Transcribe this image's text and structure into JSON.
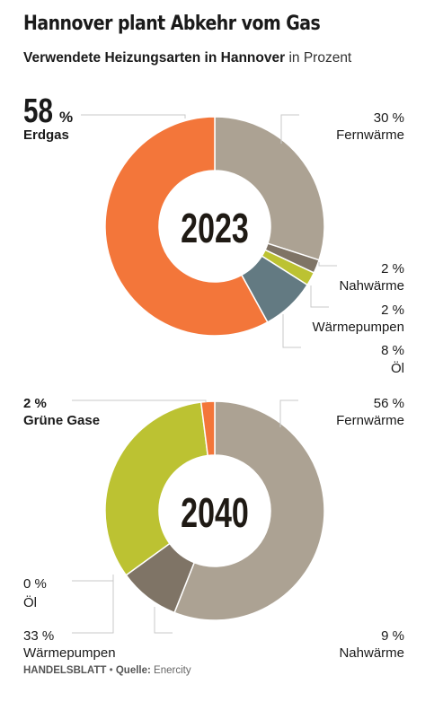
{
  "header": {
    "title": "Hannover plant Abkehr vom Gas",
    "subtitle": "Verwendete Heizungsarten in Hannover",
    "unit": "in Prozent"
  },
  "footer": {
    "publisher": "HANDELSBLATT",
    "source_label": "Quelle:",
    "source": "Enercity"
  },
  "colors": {
    "fernwaerme": "#aca293",
    "nahwaerme": "#7f7466",
    "waermepumpen_2023": "#bcc232",
    "waermepumpen_2040": "#bcc232",
    "oel": "#637a82",
    "erdgas": "#f3763a",
    "gruene_gase": "#f3763a"
  },
  "chart_data": [
    {
      "type": "pie",
      "center_label": "2023",
      "slices": [
        {
          "label": "Fernwärme",
          "value": 30,
          "display": "30 %",
          "color": "#aca293"
        },
        {
          "label": "Nahwärme",
          "value": 2,
          "display": "2 %",
          "color": "#7f7466"
        },
        {
          "label": "Wärmepumpen",
          "value": 2,
          "display": "2 %",
          "color": "#bcc232"
        },
        {
          "label": "Öl",
          "value": 8,
          "display": "8 %",
          "color": "#637a82"
        },
        {
          "label": "Erdgas",
          "value": 58,
          "display": "58",
          "unit": "%",
          "color": "#f3763a"
        }
      ]
    },
    {
      "type": "pie",
      "center_label": "2040",
      "slices": [
        {
          "label": "Fernwärme",
          "value": 56,
          "display": "56 %",
          "color": "#aca293"
        },
        {
          "label": "Nahwärme",
          "value": 9,
          "display": "9 %",
          "color": "#7f7466"
        },
        {
          "label": "Öl",
          "value": 0,
          "display": "0 %",
          "color": "#637a82"
        },
        {
          "label": "Wärmepumpen",
          "value": 33,
          "display": "33 %",
          "color": "#bcc232"
        },
        {
          "label": "Grüne Gase",
          "value": 2,
          "display": "2 %",
          "color": "#f3763a"
        }
      ]
    }
  ]
}
